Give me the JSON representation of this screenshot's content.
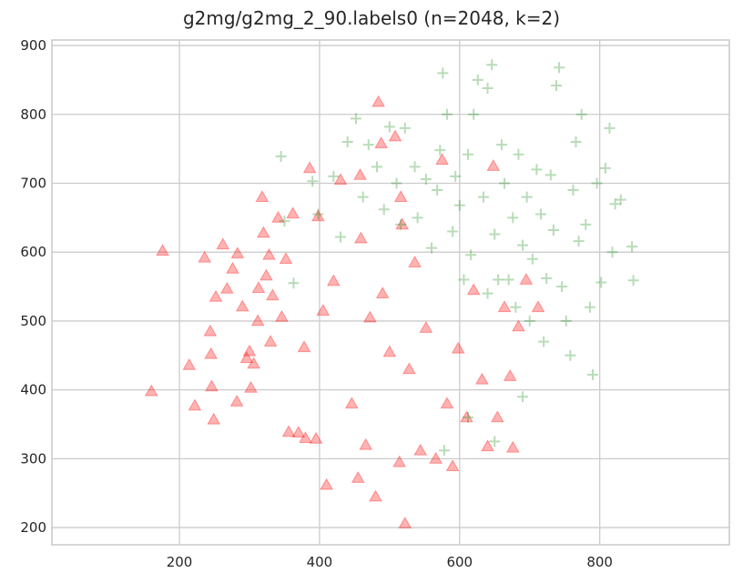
{
  "chart_data": {
    "type": "scatter",
    "title": "g2mg/g2mg_2_90.labels0 (n=2048, k=2)",
    "xlabel": "",
    "ylabel": "",
    "xlim": [
      18,
      985
    ],
    "ylim": [
      175,
      908
    ],
    "xticks": [
      200,
      400,
      600,
      800
    ],
    "yticks": [
      200,
      300,
      400,
      500,
      600,
      700,
      800,
      900
    ],
    "grid": true,
    "legend": null,
    "series": [
      {
        "marker": "triangle",
        "color": "#ff0000",
        "points": [
          [
            160,
            398
          ],
          [
            176,
            602
          ],
          [
            214,
            436
          ],
          [
            222,
            377
          ],
          [
            236,
            592
          ],
          [
            244,
            485
          ],
          [
            245,
            452
          ],
          [
            246,
            405
          ],
          [
            249,
            357
          ],
          [
            252,
            535
          ],
          [
            262,
            611
          ],
          [
            268,
            547
          ],
          [
            276,
            576
          ],
          [
            282,
            383
          ],
          [
            283,
            598
          ],
          [
            290,
            521
          ],
          [
            296,
            446
          ],
          [
            302,
            403
          ],
          [
            306,
            438
          ],
          [
            313,
            548
          ],
          [
            318,
            680
          ],
          [
            320,
            628
          ],
          [
            324,
            566
          ],
          [
            328,
            596
          ],
          [
            333,
            537
          ],
          [
            341,
            650
          ],
          [
            352,
            590
          ],
          [
            356,
            339
          ],
          [
            362,
            656
          ],
          [
            370,
            338
          ],
          [
            378,
            462
          ],
          [
            380,
            330
          ],
          [
            386,
            722
          ],
          [
            395,
            329
          ],
          [
            405,
            515
          ],
          [
            410,
            262
          ],
          [
            420,
            558
          ],
          [
            430,
            705
          ],
          [
            446,
            380
          ],
          [
            455,
            272
          ],
          [
            459,
            620
          ],
          [
            466,
            320
          ],
          [
            472,
            505
          ],
          [
            480,
            245
          ],
          [
            484,
            818
          ],
          [
            490,
            540
          ],
          [
            500,
            455
          ],
          [
            508,
            768
          ],
          [
            514,
            295
          ],
          [
            518,
            640
          ],
          [
            522,
            206
          ],
          [
            528,
            430
          ],
          [
            536,
            585
          ],
          [
            544,
            312
          ],
          [
            552,
            490
          ],
          [
            566,
            300
          ],
          [
            575,
            734
          ],
          [
            582,
            380
          ],
          [
            590,
            289
          ],
          [
            598,
            460
          ],
          [
            610,
            360
          ],
          [
            620,
            545
          ],
          [
            632,
            415
          ],
          [
            640,
            318
          ],
          [
            648,
            725
          ],
          [
            654,
            360
          ],
          [
            664,
            520
          ],
          [
            672,
            420
          ],
          [
            676,
            316
          ],
          [
            684,
            492
          ],
          [
            695,
            560
          ],
          [
            712,
            520
          ],
          [
            488,
            758
          ],
          [
            516,
            680
          ],
          [
            458,
            712
          ],
          [
            398,
            652
          ],
          [
            346,
            506
          ],
          [
            330,
            470
          ],
          [
            312,
            500
          ],
          [
            300,
            456
          ]
        ]
      },
      {
        "marker": "plus",
        "color": "#008000",
        "points": [
          [
            345,
            739
          ],
          [
            350,
            645
          ],
          [
            363,
            555
          ],
          [
            390,
            703
          ],
          [
            398,
            655
          ],
          [
            420,
            710
          ],
          [
            430,
            622
          ],
          [
            440,
            760
          ],
          [
            452,
            794
          ],
          [
            462,
            680
          ],
          [
            470,
            756
          ],
          [
            482,
            724
          ],
          [
            492,
            662
          ],
          [
            500,
            782
          ],
          [
            510,
            700
          ],
          [
            516,
            640
          ],
          [
            522,
            780
          ],
          [
            536,
            724
          ],
          [
            540,
            650
          ],
          [
            552,
            706
          ],
          [
            560,
            606
          ],
          [
            568,
            690
          ],
          [
            572,
            748
          ],
          [
            576,
            860
          ],
          [
            582,
            800
          ],
          [
            590,
            630
          ],
          [
            594,
            710
          ],
          [
            600,
            668
          ],
          [
            606,
            560
          ],
          [
            612,
            742
          ],
          [
            616,
            596
          ],
          [
            620,
            800
          ],
          [
            626,
            850
          ],
          [
            634,
            680
          ],
          [
            640,
            838
          ],
          [
            646,
            872
          ],
          [
            650,
            626
          ],
          [
            655,
            560
          ],
          [
            660,
            756
          ],
          [
            664,
            700
          ],
          [
            670,
            560
          ],
          [
            676,
            650
          ],
          [
            680,
            520
          ],
          [
            684,
            742
          ],
          [
            690,
            610
          ],
          [
            696,
            680
          ],
          [
            700,
            500
          ],
          [
            704,
            590
          ],
          [
            710,
            720
          ],
          [
            716,
            655
          ],
          [
            720,
            470
          ],
          [
            724,
            562
          ],
          [
            730,
            712
          ],
          [
            734,
            632
          ],
          [
            738,
            842
          ],
          [
            742,
            868
          ],
          [
            746,
            550
          ],
          [
            752,
            500
          ],
          [
            758,
            450
          ],
          [
            762,
            690
          ],
          [
            766,
            760
          ],
          [
            770,
            616
          ],
          [
            774,
            800
          ],
          [
            780,
            640
          ],
          [
            786,
            520
          ],
          [
            790,
            422
          ],
          [
            796,
            700
          ],
          [
            802,
            556
          ],
          [
            808,
            722
          ],
          [
            814,
            780
          ],
          [
            818,
            600
          ],
          [
            822,
            670
          ],
          [
            830,
            676
          ],
          [
            846,
            608
          ],
          [
            848,
            559
          ],
          [
            612,
            360
          ],
          [
            650,
            325
          ],
          [
            690,
            390
          ],
          [
            578,
            312
          ],
          [
            640,
            540
          ]
        ]
      }
    ]
  }
}
